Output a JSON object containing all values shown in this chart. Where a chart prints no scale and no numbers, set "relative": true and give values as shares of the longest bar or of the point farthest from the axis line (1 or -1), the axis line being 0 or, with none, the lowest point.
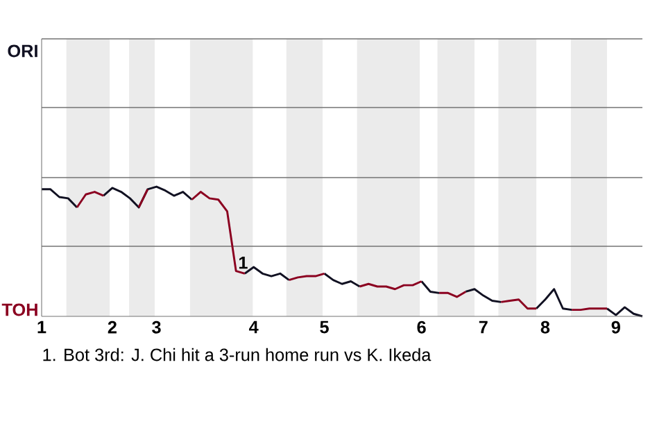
{
  "chart_data": {
    "type": "line",
    "relative": true,
    "categories": [
      "1",
      null,
      null,
      null,
      null,
      null,
      null,
      null,
      "2",
      null,
      null,
      null,
      null,
      "3",
      null,
      null,
      null,
      null,
      null,
      null,
      null,
      null,
      null,
      null,
      "4",
      null,
      null,
      null,
      null,
      null,
      null,
      null,
      "5",
      null,
      null,
      null,
      null,
      null,
      null,
      null,
      null,
      null,
      null,
      "6",
      null,
      null,
      null,
      null,
      null,
      null,
      "7",
      null,
      null,
      null,
      null,
      null,
      null,
      "8",
      null,
      null,
      null,
      null,
      null,
      null,
      null,
      "9",
      null,
      null,
      null
    ],
    "series": [
      {
        "color": "#111122",
        "values": [
          0.98,
          0.98,
          0.92,
          0.91,
          0.84,
          null,
          null,
          0.93,
          0.99,
          0.96,
          0.91,
          0.84,
          0.98,
          1,
          0.97,
          0.93,
          0.96,
          0.9,
          null,
          null,
          null,
          null,
          null,
          0.33,
          0.38,
          0.33,
          0.31,
          0.33,
          0.28,
          null,
          null,
          null,
          0.33,
          0.28,
          0.25,
          0.27,
          0.23,
          null,
          null,
          null,
          null,
          null,
          null,
          0.27,
          0.19,
          0.18,
          null,
          null,
          0.19,
          0.21,
          0.16,
          0.12,
          0.11,
          null,
          null,
          null,
          0.06,
          0.13,
          0.21,
          0.06,
          0.05,
          null,
          null,
          null,
          0.06,
          0.01,
          0.07,
          0.02,
          0
        ]
      },
      {
        "color": "#8b0020",
        "values": [
          null,
          null,
          null,
          null,
          0.84,
          0.94,
          0.96,
          0.93,
          null,
          null,
          null,
          0.84,
          0.98,
          null,
          null,
          null,
          null,
          0.9,
          0.96,
          0.91,
          0.9,
          0.81,
          0.35,
          0.33,
          null,
          null,
          null,
          null,
          0.28,
          0.3,
          0.31,
          0.31,
          0.33,
          null,
          null,
          null,
          0.23,
          0.25,
          0.23,
          0.23,
          0.21,
          0.24,
          0.24,
          0.27,
          null,
          0.18,
          0.18,
          0.15,
          0.19,
          null,
          null,
          null,
          0.11,
          0.12,
          0.13,
          0.06,
          0.06,
          null,
          null,
          null,
          0.05,
          0.05,
          0.06,
          0.06,
          0.06,
          null,
          null,
          null,
          null
        ]
      }
    ],
    "marker": "none",
    "line_style": "solid",
    "ref_lines": [
      {
        "axis": "y",
        "value": 0.54,
        "color": "#737373"
      },
      {
        "axis": "y",
        "value": 1.07,
        "color": "#737373"
      },
      {
        "axis": "y",
        "value": 1.61,
        "color": "#737373"
      },
      {
        "axis": "y",
        "value": 2.14,
        "color": "#737373"
      }
    ],
    "annotations": [
      "ORI",
      "TOH",
      {
        "text": "1",
        "y": 0.35
      },
      "1. Bot 3rd: J. Chi hit a 3-run home run vs K. Ikeda"
    ]
  }
}
